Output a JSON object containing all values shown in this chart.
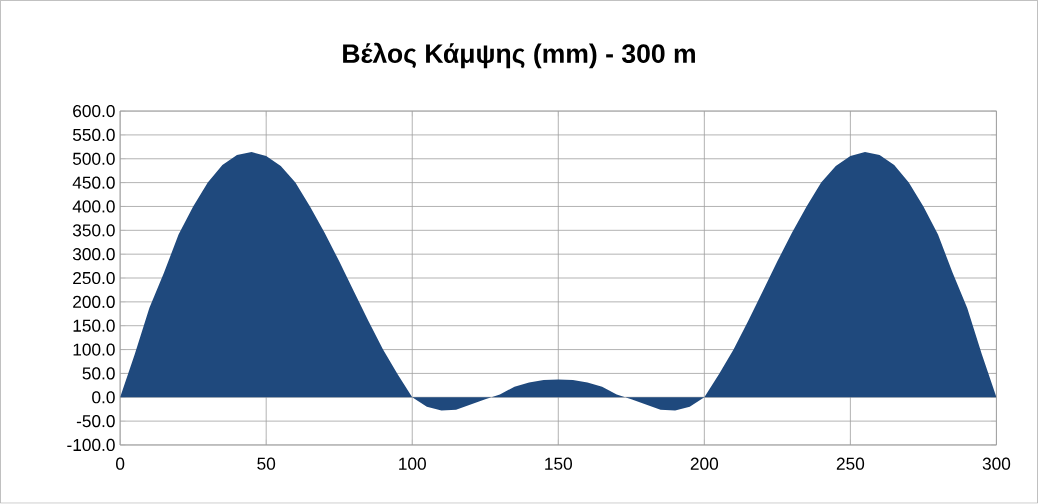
{
  "chart_data": {
    "type": "area",
    "title": "Βέλος Κάμψης (mm) - 300 m",
    "x": [
      0,
      5,
      10,
      15,
      20,
      25,
      30,
      35,
      40,
      45,
      50,
      55,
      60,
      65,
      70,
      75,
      80,
      85,
      90,
      95,
      100,
      105,
      110,
      115,
      120,
      125,
      130,
      135,
      140,
      145,
      150,
      155,
      160,
      165,
      170,
      175,
      180,
      185,
      190,
      195,
      200,
      205,
      210,
      215,
      220,
      225,
      230,
      235,
      240,
      245,
      250,
      255,
      260,
      265,
      270,
      275,
      280,
      285,
      290,
      295,
      300
    ],
    "values": [
      0,
      90,
      187,
      261,
      341,
      400,
      450,
      487,
      508,
      514,
      506,
      485,
      450,
      400,
      345,
      285,
      222,
      160,
      100,
      48,
      0,
      -20,
      -28,
      -26,
      -15,
      -4,
      6,
      22,
      31,
      36,
      37,
      36,
      31,
      22,
      6,
      -4,
      -15,
      -26,
      -28,
      -20,
      0,
      48,
      100,
      160,
      222,
      285,
      345,
      400,
      450,
      485,
      506,
      514,
      508,
      487,
      450,
      400,
      341,
      261,
      187,
      90,
      0
    ],
    "color": "#1f497d",
    "xlim": [
      0,
      300
    ],
    "xticks": [
      0,
      50,
      100,
      150,
      200,
      250,
      300
    ],
    "ylim": [
      -100,
      600
    ],
    "yticks": [
      {
        "value": -100,
        "label": "-100.0"
      },
      {
        "value": -50,
        "label": "-50.0"
      },
      {
        "value": 0,
        "label": "0.0"
      },
      {
        "value": 50,
        "label": "50.0"
      },
      {
        "value": 100,
        "label": "100.0"
      },
      {
        "value": 150,
        "label": "150.0"
      },
      {
        "value": 200,
        "label": "200.0"
      },
      {
        "value": 250,
        "label": "250.0"
      },
      {
        "value": 300,
        "label": "300.0"
      },
      {
        "value": 350,
        "label": "350.0"
      },
      {
        "value": 400,
        "label": "400.0"
      },
      {
        "value": 450,
        "label": "450.0"
      },
      {
        "value": 500,
        "label": "500.0"
      },
      {
        "value": 550,
        "label": "550.0"
      },
      {
        "value": 600,
        "label": "600.0"
      }
    ],
    "grid": true
  }
}
